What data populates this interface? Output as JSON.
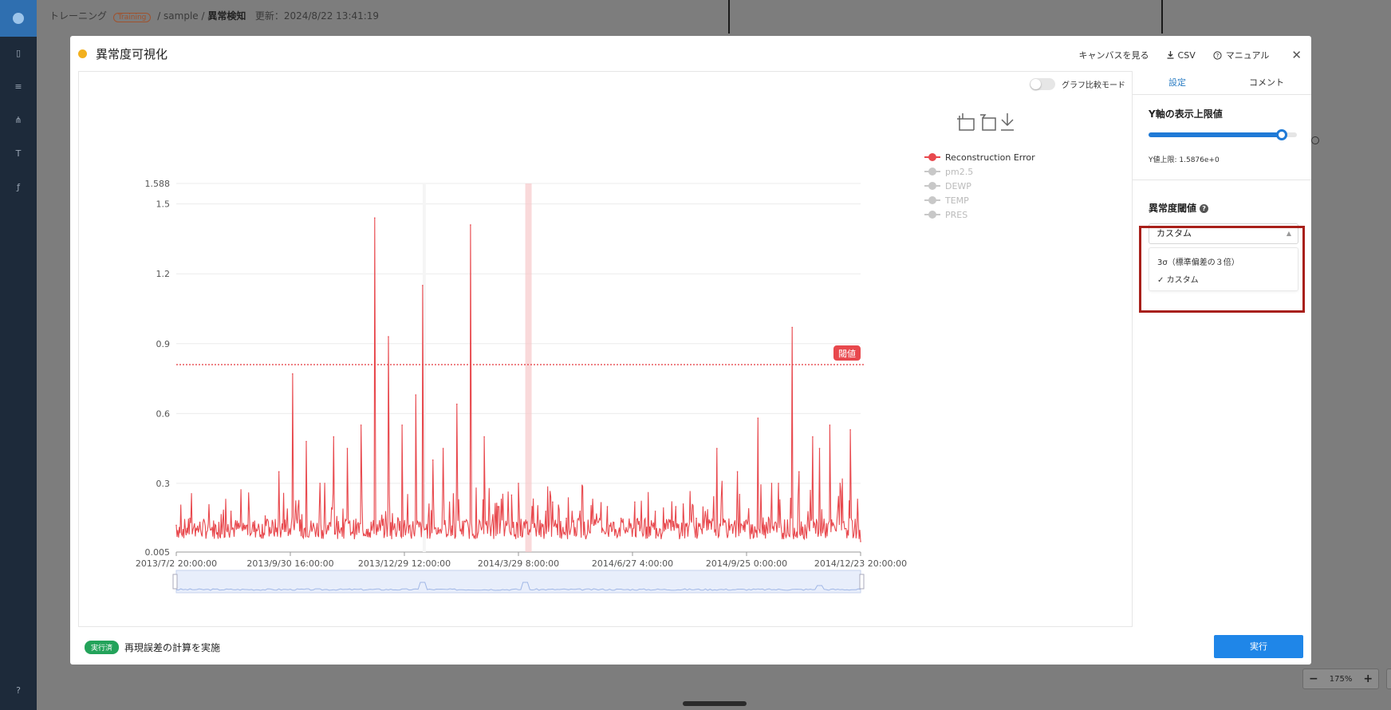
{
  "sidebar": {
    "icons": [
      "logo-icon",
      "document-icon",
      "database-icon",
      "hierarchy-icon",
      "text-type-icon",
      "function-icon",
      "help-icon"
    ]
  },
  "background": {
    "breadcrumb": {
      "part1": "トレーニング",
      "badge": "Training",
      "sep1": "/ sample /",
      "current": "異常検知",
      "updated": "更新：2024/8/22 13:41:19"
    },
    "zoom": {
      "minus": "−",
      "value": "175%",
      "plus": "+"
    }
  },
  "modal": {
    "title": "異常度可視化",
    "status_color": "#f2b01e",
    "actions": {
      "canvas": "キャンバスを見る",
      "csv": "CSV",
      "manual": "マニュアル"
    },
    "compare_mode": "グラフ比較モード"
  },
  "right_panel": {
    "tabs": [
      "設定",
      "コメント"
    ],
    "active_tab": 0,
    "y_limit_title": "Y軸の表示上限値",
    "y_limit_text": "Y値上限: 1.5876e+0",
    "y_limit_slider": 0.9,
    "threshold_title": "異常度閾値",
    "threshold_help": "?",
    "threshold_selected": "カスタム",
    "threshold_options": [
      {
        "label": "3σ（標準偏差の３倍）",
        "checked": false
      },
      {
        "label": "カスタム",
        "checked": true
      }
    ]
  },
  "footer": {
    "status_badge": "実行済",
    "status_text": "再現誤差の計算を実施",
    "run_button": "実行"
  },
  "chart_data": {
    "type": "line",
    "title": "",
    "xlabel": "",
    "ylabel": "",
    "ylim": [
      0.005,
      1.588
    ],
    "y_ticks": [
      "0.005",
      "0.3",
      "0.6",
      "0.9",
      "1.2",
      "1.5",
      "1.588"
    ],
    "x_ticks": [
      "2013/7/2 20:00:00",
      "2013/9/30 16:00:00",
      "2013/12/29 12:00:00",
      "2014/3/29 8:00:00",
      "2014/6/27 4:00:00",
      "2014/9/25 0:00:00",
      "2014/12/23 20:00:00"
    ],
    "threshold": {
      "value": 0.81,
      "label": "閾値",
      "color": "#e8484d"
    },
    "legend": [
      {
        "name": "Reconstruction Error",
        "active": true,
        "color": "#e8484d"
      },
      {
        "name": "pm2.5",
        "active": false,
        "color": "#c8c8c8"
      },
      {
        "name": "DEWP",
        "active": false,
        "color": "#c8c8c8"
      },
      {
        "name": "TEMP",
        "active": false,
        "color": "#c8c8c8"
      },
      {
        "name": "PRES",
        "active": false,
        "color": "#c8c8c8"
      }
    ],
    "series": [
      {
        "name": "Reconstruction Error",
        "color": "#e8484d",
        "x": [
          0,
          0.02,
          0.05,
          0.08,
          0.1,
          0.13,
          0.15,
          0.17,
          0.19,
          0.21,
          0.23,
          0.25,
          0.27,
          0.29,
          0.31,
          0.33,
          0.35,
          0.36,
          0.375,
          0.39,
          0.41,
          0.43,
          0.45,
          0.47,
          0.49,
          0.5,
          0.52,
          0.54,
          0.55,
          0.57,
          0.59,
          0.61,
          0.63,
          0.65,
          0.67,
          0.7,
          0.73,
          0.76,
          0.79,
          0.82,
          0.85,
          0.87,
          0.88,
          0.9,
          0.91,
          0.93,
          0.94,
          0.955,
          0.97,
          0.985,
          1.0
        ],
        "y": [
          0.12,
          0.15,
          0.1,
          0.18,
          0.12,
          0.16,
          0.35,
          0.77,
          0.48,
          0.3,
          0.5,
          0.45,
          0.55,
          1.44,
          0.93,
          0.55,
          0.68,
          1.15,
          0.4,
          0.45,
          0.64,
          1.41,
          0.5,
          0.2,
          0.25,
          0.3,
          0.2,
          0.18,
          0.22,
          0.15,
          0.18,
          0.12,
          0.2,
          0.15,
          0.22,
          0.18,
          0.2,
          0.15,
          0.45,
          0.35,
          0.58,
          0.3,
          0.3,
          0.97,
          0.35,
          0.5,
          0.45,
          0.55,
          0.3,
          0.53,
          0.05
        ]
      }
    ]
  }
}
